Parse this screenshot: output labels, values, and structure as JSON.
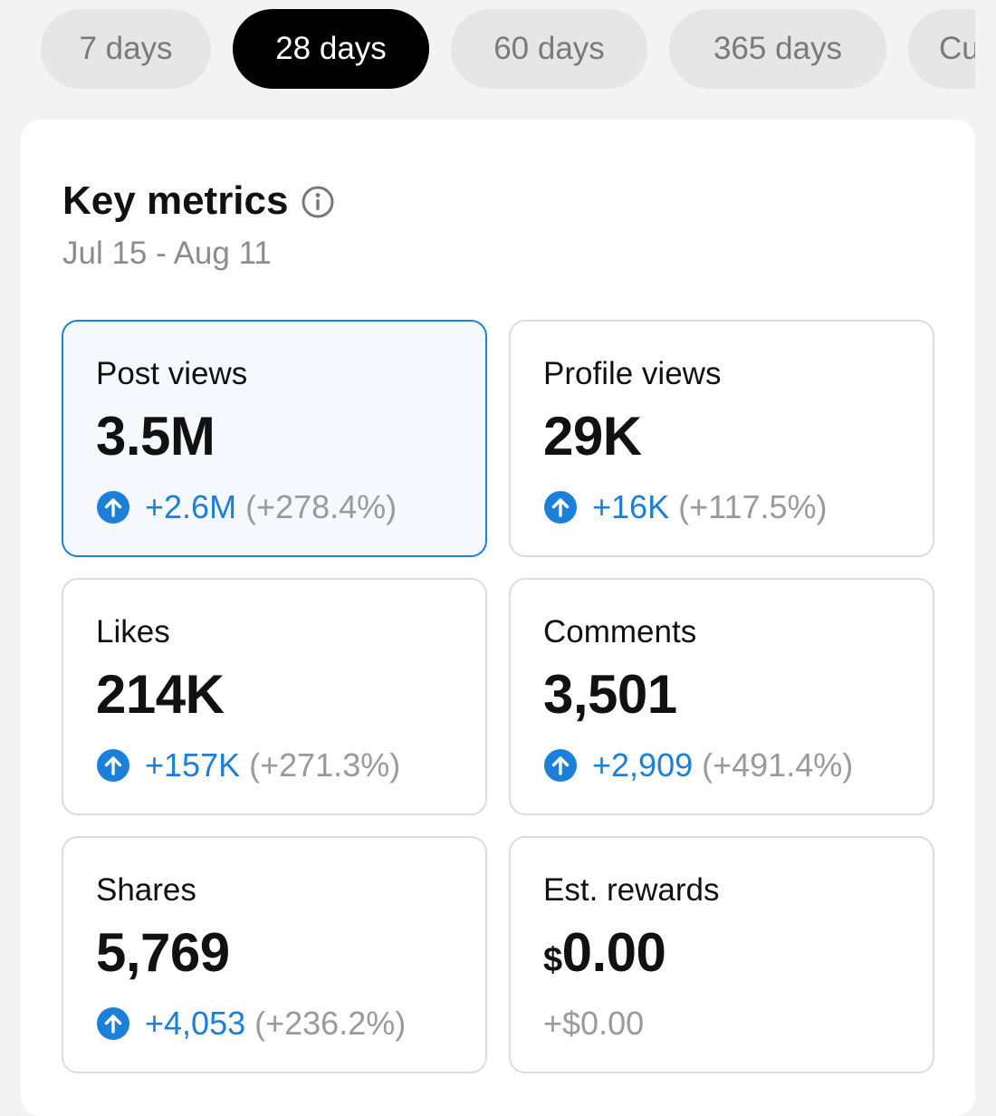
{
  "tabs": [
    {
      "label": "7 days"
    },
    {
      "label": "28 days"
    },
    {
      "label": "60 days"
    },
    {
      "label": "365 days"
    },
    {
      "label": "Cu"
    }
  ],
  "active_tab": "28 days",
  "header": {
    "title": "Key metrics",
    "date_range": "Jul 15 - Aug 11"
  },
  "metrics": [
    {
      "label": "Post views",
      "value": "3.5M",
      "delta": "+2.6M",
      "pct": "(+278.4%)",
      "selected": true
    },
    {
      "label": "Profile views",
      "value": "29K",
      "delta": "+16K",
      "pct": "(+117.5%)"
    },
    {
      "label": "Likes",
      "value": "214K",
      "delta": "+157K",
      "pct": "(+271.3%)"
    },
    {
      "label": "Comments",
      "value": "3,501",
      "delta": "+2,909",
      "pct": "(+491.4%)"
    },
    {
      "label": "Shares",
      "value": "5,769",
      "delta": "+4,053",
      "pct": "(+236.2%)"
    },
    {
      "label": "Est. rewards",
      "currency": "$",
      "value": "0.00",
      "delta": "+$0.00"
    }
  ],
  "colors": {
    "accent": "#1c7fd9",
    "tab_active_bg": "#000000",
    "tab_inactive_bg": "#e6e6e6",
    "muted_text": "#9a9a9a"
  },
  "icons": {
    "info": "info-icon",
    "increase": "arrow-up-circle-icon"
  }
}
